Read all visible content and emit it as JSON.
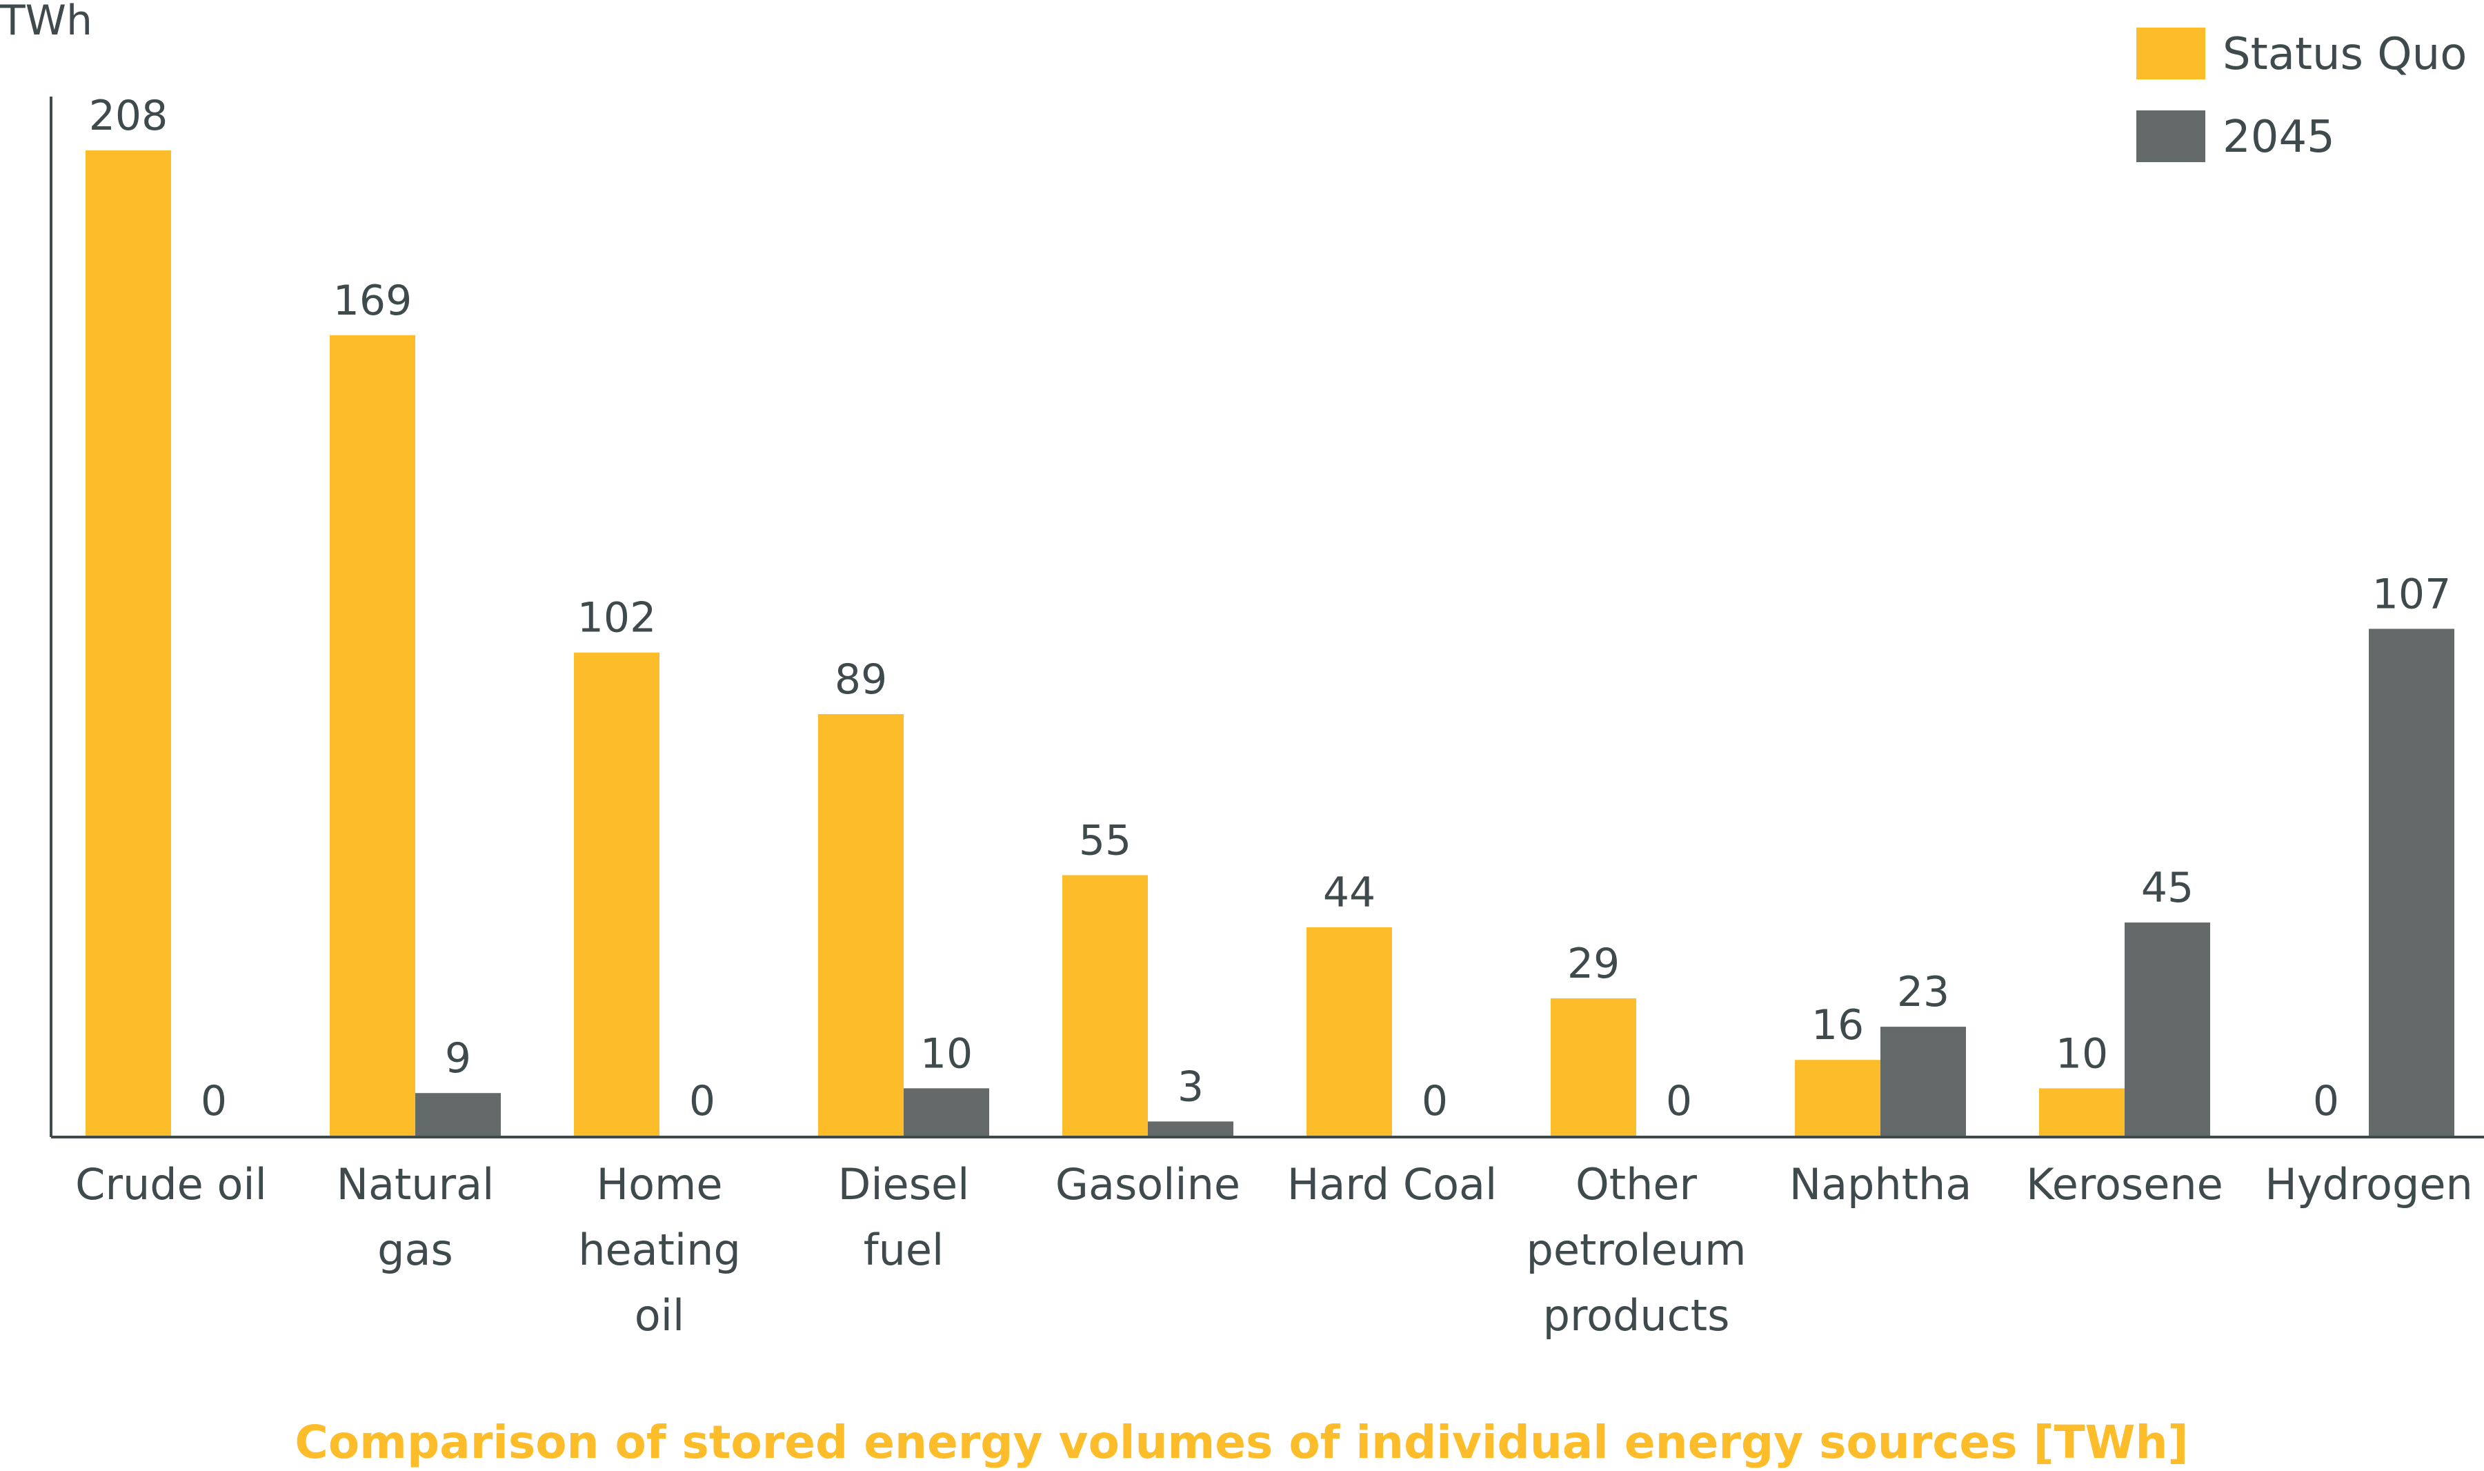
{
  "chart_data": {
    "type": "bar",
    "title": "Comparison of stored energy volumes of individual energy sources [TWh]",
    "ylabel": "TWh",
    "xlabel": "",
    "ylim": [
      0,
      220
    ],
    "grid": false,
    "legend_position": "top-right",
    "categories": [
      [
        "Crude oil"
      ],
      [
        "Natural",
        "gas"
      ],
      [
        "Home",
        "heating",
        "oil"
      ],
      [
        "Diesel",
        "fuel"
      ],
      [
        "Gasoline"
      ],
      [
        "Hard Coal"
      ],
      [
        "Other",
        "petroleum",
        "products"
      ],
      [
        "Naphtha"
      ],
      [
        "Kerosene"
      ],
      [
        "Hydrogen"
      ]
    ],
    "series": [
      {
        "name": "Status Quo",
        "color": "#FDBD2B",
        "values": [
          208,
          169,
          102,
          89,
          55,
          44,
          29,
          16,
          10,
          0
        ]
      },
      {
        "name": "2045",
        "color": "#646A69",
        "values": [
          0,
          9,
          0,
          10,
          3,
          0,
          0,
          23,
          45,
          107
        ]
      }
    ],
    "title_color": "#FDBD2B",
    "text_color": "#3f4a4c",
    "axis_color": "#3f4a4c"
  }
}
